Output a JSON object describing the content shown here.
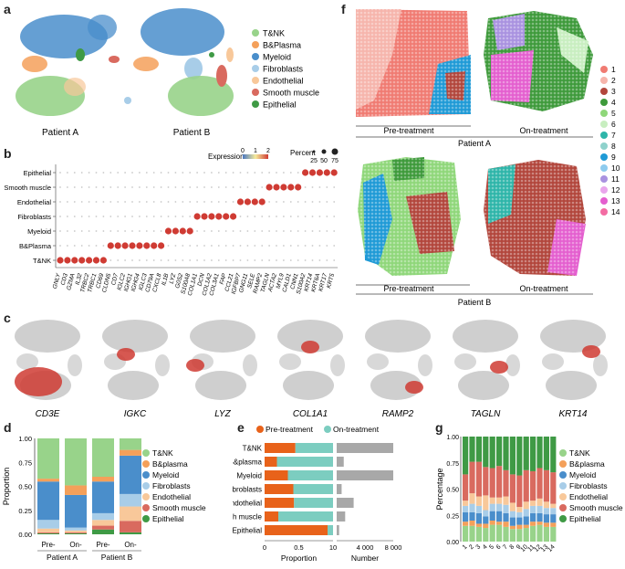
{
  "panels": {
    "a": "a",
    "b": "b",
    "c": "c",
    "d": "d",
    "e": "e",
    "f": "f",
    "g": "g"
  },
  "colors": {
    "T&NK": "#98d38a",
    "B&Plasma": "#f4a05a",
    "Myeloid": "#4a8ecb",
    "Fibroblasts": "#a8cde8",
    "Endothelial": "#f8c89a",
    "Smooth muscle": "#d96a5f",
    "Epithelial": "#3f9a45",
    "pre": "#e8621a",
    "on": "#7ccdc0",
    "number": "#a8a8a8",
    "expr_gray": "#c8c8c8",
    "expr_red": "#cf3b33"
  },
  "panel_a": {
    "legend": [
      "T&NK",
      "B&Plasma",
      "Myeloid",
      "Fibroblasts",
      "Endothelial",
      "Smooth muscle",
      "Epithelial"
    ],
    "patient_a": "Patient A",
    "patient_b": "Patient B"
  },
  "panel_b": {
    "rows": [
      "Epithelial",
      "Smooth muscle",
      "Endothelial",
      "Fibroblasts",
      "Myeloid",
      "B&Plasma",
      "T&NK"
    ],
    "genes": [
      "GNLY",
      "CD3",
      "GZMA",
      "IL32",
      "TRBC2",
      "TRBC1",
      "CD69",
      "CLDN5",
      "CD7",
      "IGLC2",
      "IGHG1",
      "IGHG4",
      "IGLC3",
      "CD79A",
      "CXCL8",
      "IL1B",
      "LYZ",
      "G0S2",
      "S100A8",
      "COL1A1",
      "DCN",
      "COL1A2",
      "COL3A1",
      "FAP",
      "CCL21",
      "IGFBP7",
      "GNG11",
      "SELE",
      "RAMP2",
      "TAGLN",
      "ACTA2",
      "MYL9",
      "CALD1",
      "CNN1",
      "S100A2",
      "KRT14",
      "KRT6A",
      "KRT17",
      "KRT5"
    ],
    "expression_title": "Expression",
    "expression_ticks": [
      "0",
      "1",
      "2"
    ],
    "percent_title": "Percent",
    "percent_ticks": [
      "25",
      "50",
      "75"
    ]
  },
  "panel_c": {
    "genes": [
      "CD3E",
      "IGKC",
      "LYZ",
      "COL1A1",
      "RAMP2",
      "TAGLN",
      "KRT14"
    ]
  },
  "panel_d": {
    "chart_data": {
      "type": "bar",
      "stacked": true,
      "categories": [
        "Pre-",
        "On-",
        "Pre-",
        "On-"
      ],
      "groups": [
        "Patient A",
        "Patient B"
      ],
      "ylabel": "Proportion",
      "ylim": [
        0,
        1
      ],
      "yticks": [
        "0.00",
        "0.25",
        "0.50",
        "0.75",
        "1.00"
      ],
      "series": [
        {
          "name": "Epithelial",
          "values": [
            0.01,
            0.01,
            0.05,
            0.02
          ]
        },
        {
          "name": "Smooth muscle",
          "values": [
            0.01,
            0.01,
            0.04,
            0.12
          ]
        },
        {
          "name": "Endothelial",
          "values": [
            0.04,
            0.02,
            0.06,
            0.15
          ]
        },
        {
          "name": "Fibroblasts",
          "values": [
            0.09,
            0.03,
            0.07,
            0.13
          ]
        },
        {
          "name": "Myeloid",
          "values": [
            0.4,
            0.34,
            0.33,
            0.4
          ]
        },
        {
          "name": "B&plasma",
          "values": [
            0.03,
            0.1,
            0.05,
            0.06
          ]
        },
        {
          "name": "T&NK",
          "values": [
            0.42,
            0.49,
            0.4,
            0.12
          ]
        }
      ],
      "legend": [
        "T&NK",
        "B&plasma",
        "Myeloid",
        "Fibroblasts",
        "Endothelial",
        "Smooth muscle",
        "Epithelial"
      ]
    }
  },
  "panel_e": {
    "chart_data": {
      "type": "bar",
      "orientation": "horizontal",
      "legend": [
        "Pre-treatment",
        "On-treatment"
      ],
      "categories": [
        "T&NK",
        "B&plasma",
        "Myeloid",
        "Fibroblasts",
        "Endothelial",
        "Smooth muscle",
        "Epithelial"
      ],
      "pre_proportion": [
        0.45,
        0.18,
        0.34,
        0.42,
        0.43,
        0.2,
        0.92
      ],
      "number": [
        8000,
        1000,
        8000,
        700,
        2400,
        1200,
        350
      ],
      "xlabel_left": "Proportion",
      "xticks_left": [
        "0",
        "0.5",
        "10"
      ],
      "xlabel_right": "Number",
      "xticks_right": [
        "4 000",
        "8 000"
      ],
      "xlim_right": [
        0,
        8000
      ]
    }
  },
  "panel_f": {
    "pre": "Pre-treatment",
    "on": "On-treatment",
    "patient_a": "Patient A",
    "patient_b": "Patient B",
    "clusters": [
      "1",
      "2",
      "3",
      "4",
      "5",
      "6",
      "7",
      "8",
      "9",
      "10",
      "11",
      "12",
      "13",
      "14"
    ],
    "cluster_colors": [
      "#f07b72",
      "#f6b5ac",
      "#b2463c",
      "#3e9a3b",
      "#8fd77a",
      "#c8eec0",
      "#2eb5a9",
      "#8fd2cc",
      "#1f9ad6",
      "#8dcbee",
      "#a992e0",
      "#e9a6ec",
      "#e45fcf",
      "#f36ca3"
    ]
  },
  "panel_g": {
    "chart_data": {
      "type": "bar",
      "stacked": true,
      "categories": [
        "1",
        "2",
        "3",
        "4",
        "5",
        "6",
        "7",
        "8",
        "9",
        "10",
        "11",
        "12",
        "13",
        "14"
      ],
      "ylabel": "Percentage",
      "ylim": [
        0,
        1
      ],
      "yticks": [
        "0.00",
        "0.25",
        "0.50",
        "0.75",
        "1.00"
      ],
      "series": [
        {
          "name": "T&NK",
          "values": [
            0.15,
            0.15,
            0.14,
            0.13,
            0.16,
            0.16,
            0.14,
            0.12,
            0.12,
            0.13,
            0.15,
            0.16,
            0.14,
            0.14
          ]
        },
        {
          "name": "B&plasma",
          "values": [
            0.04,
            0.05,
            0.03,
            0.04,
            0.04,
            0.03,
            0.05,
            0.03,
            0.04,
            0.03,
            0.04,
            0.03,
            0.04,
            0.04
          ]
        },
        {
          "name": "Myeloid",
          "values": [
            0.09,
            0.08,
            0.1,
            0.07,
            0.09,
            0.1,
            0.08,
            0.08,
            0.07,
            0.08,
            0.08,
            0.08,
            0.08,
            0.08
          ]
        },
        {
          "name": "Fibroblasts",
          "values": [
            0.06,
            0.08,
            0.07,
            0.06,
            0.07,
            0.07,
            0.08,
            0.06,
            0.05,
            0.07,
            0.07,
            0.07,
            0.06,
            0.06
          ]
        },
        {
          "name": "Endothelial",
          "values": [
            0.05,
            0.1,
            0.09,
            0.14,
            0.06,
            0.06,
            0.08,
            0.08,
            0.05,
            0.07,
            0.05,
            0.07,
            0.06,
            0.04
          ]
        },
        {
          "name": "Smooth muscle",
          "values": [
            0.25,
            0.3,
            0.33,
            0.27,
            0.28,
            0.3,
            0.25,
            0.27,
            0.3,
            0.3,
            0.28,
            0.29,
            0.3,
            0.3
          ]
        },
        {
          "name": "Epithelial",
          "values": [
            0.36,
            0.24,
            0.24,
            0.29,
            0.3,
            0.28,
            0.32,
            0.36,
            0.37,
            0.32,
            0.33,
            0.3,
            0.32,
            0.34
          ]
        }
      ],
      "legend": [
        "T&NK",
        "B&plasma",
        "Myeloid",
        "Fibroblasts",
        "Endothelial",
        "Smooth muscle",
        "Epithelial"
      ],
      "colors": [
        "#98d38a",
        "#f4a05a",
        "#4a8ecb",
        "#a8cde8",
        "#f8c89a",
        "#d96a5f",
        "#3f9a45"
      ]
    }
  }
}
